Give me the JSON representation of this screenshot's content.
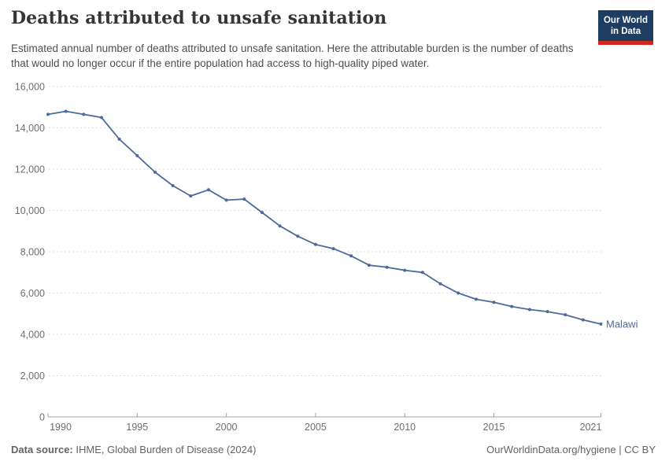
{
  "header": {
    "title": "Deaths attributed to unsafe sanitation",
    "subtitle": "Estimated annual number of deaths attributed to unsafe sanitation. Here the attributable burden is the number of deaths that would no longer occur if the entire population had access to high-quality piped water."
  },
  "logo": {
    "line1": "Our World",
    "line2": "in Data"
  },
  "chart_data": {
    "type": "line",
    "title": "Deaths attributed to unsafe sanitation",
    "x": [
      1990,
      1991,
      1992,
      1993,
      1994,
      1995,
      1996,
      1997,
      1998,
      1999,
      2000,
      2001,
      2002,
      2003,
      2004,
      2005,
      2006,
      2007,
      2008,
      2009,
      2010,
      2011,
      2012,
      2013,
      2014,
      2015,
      2016,
      2017,
      2018,
      2019,
      2020,
      2021
    ],
    "series": [
      {
        "name": "Malawi",
        "values": [
          14650,
          14800,
          14650,
          14500,
          13450,
          12650,
          11850,
          11200,
          10700,
          11000,
          10500,
          10550,
          9900,
          9250,
          8750,
          8350,
          8150,
          7800,
          7350,
          7250,
          7100,
          7000,
          6450,
          6000,
          5700,
          5550,
          5350,
          5200,
          5100,
          4950,
          4700,
          4500
        ]
      }
    ],
    "ylim": [
      0,
      16000
    ],
    "ytick_interval": 2000,
    "xticks": [
      1990,
      1995,
      2000,
      2005,
      2010,
      2015,
      2021
    ],
    "grid": "horizontal-dashed",
    "legend": "end-of-line-label",
    "end_label": "Malawi"
  },
  "footer": {
    "source_label": "Data source:",
    "source_value": "IHME, Global Burden of Disease (2024)",
    "url": "OurWorldinData.org/hygiene",
    "separator": "|",
    "license": "CC BY"
  },
  "colors": {
    "line": "#4c6a9c",
    "grid": "#dedede",
    "axis": "#a3a3a3",
    "tick_label": "#6e6e6e",
    "title_text": "#353535",
    "subtitle_text": "#4f4f4f",
    "footer_text": "#636363",
    "logo_bg": "#1d3d63",
    "logo_red": "#d1271c"
  }
}
